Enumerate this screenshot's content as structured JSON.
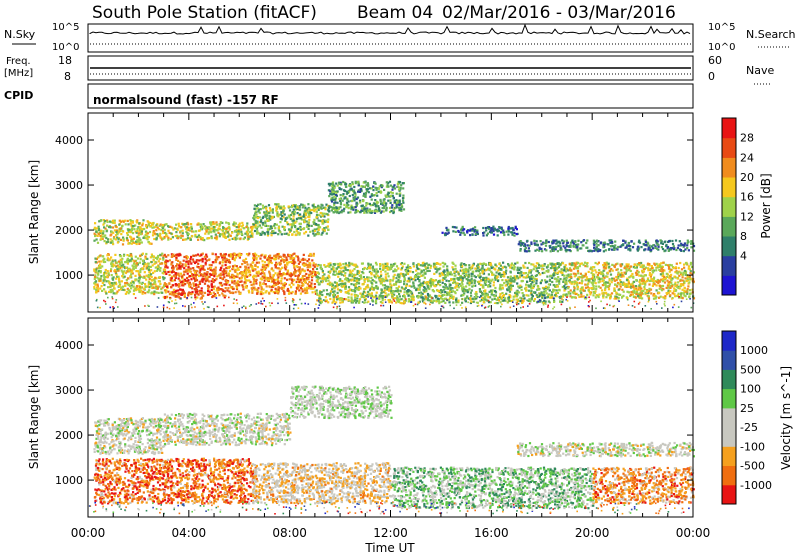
{
  "header": {
    "station": "South Pole Station (fitACF)",
    "beam": "Beam 04",
    "date_range": "02/Mar/2016 - 03/Mar/2016"
  },
  "sky_panel": {
    "left_label": "N.Sky",
    "left_ticks": [
      "10^5",
      "10^0"
    ],
    "right_label": "N.Search",
    "right_ticks": [
      "10^5",
      "10^0"
    ]
  },
  "freq_panel": {
    "left_label_1": "Freq.",
    "left_label_2": "[MHz]",
    "left_ticks": [
      "18",
      "8"
    ],
    "right_label": "Nave",
    "right_ticks": [
      "60",
      "0"
    ]
  },
  "cpid_panel": {
    "label": "CPID",
    "text": "normalsound (fast) -157 RF"
  },
  "colors": {
    "power": [
      "#1e14d2",
      "#2a3fa0",
      "#2f7f6a",
      "#5aa85a",
      "#9fd24a",
      "#f5c81e",
      "#f08c1e",
      "#e84a14",
      "#e81414"
    ],
    "velocity": [
      "#e81414",
      "#f06e10",
      "#f5a01e",
      "#c8c8c0",
      "#c8c8c0",
      "#5fc846",
      "#2f8a5a",
      "#3050a8",
      "#1e28c8"
    ]
  },
  "chart_data": [
    {
      "type": "heatmap",
      "title": "",
      "xlabel": "",
      "ylabel": "Slant Range [km]",
      "x_ticks": [
        "00:00",
        "04:00",
        "08:00",
        "12:00",
        "16:00",
        "20:00",
        "00:00"
      ],
      "y_ticks": [
        "1000",
        "2000",
        "3000",
        "4000"
      ],
      "xlim_hours": [
        0,
        24
      ],
      "ylim_km": [
        180,
        4600
      ],
      "colorbar": {
        "label": "Power [dB]",
        "ticks": [
          "28",
          "24",
          "20",
          "16",
          "12",
          "8",
          "4"
        ],
        "range": [
          0,
          30
        ]
      },
      "bands": [
        {
          "t0": 0.2,
          "t1": 2.5,
          "r0": 1700,
          "r1": 2250,
          "level": 0.55
        },
        {
          "t0": 2.5,
          "t1": 6.5,
          "r0": 1800,
          "r1": 2200,
          "level": 0.55
        },
        {
          "t0": 6.5,
          "t1": 9.5,
          "r0": 1900,
          "r1": 2600,
          "level": 0.45
        },
        {
          "t0": 9.5,
          "t1": 12.5,
          "r0": 2400,
          "r1": 3100,
          "level": 0.35
        },
        {
          "t0": 0.2,
          "t1": 3.0,
          "r0": 600,
          "r1": 1500,
          "level": 0.55
        },
        {
          "t0": 3.0,
          "t1": 5.5,
          "r0": 500,
          "r1": 1500,
          "level": 0.85
        },
        {
          "t0": 5.5,
          "t1": 9.0,
          "r0": 600,
          "r1": 1500,
          "level": 0.75
        },
        {
          "t0": 9.0,
          "t1": 12.5,
          "r0": 400,
          "r1": 1300,
          "level": 0.5
        },
        {
          "t0": 12.5,
          "t1": 19.0,
          "r0": 400,
          "r1": 1300,
          "level": 0.45
        },
        {
          "t0": 19.0,
          "t1": 24.0,
          "r0": 500,
          "r1": 1300,
          "level": 0.6
        },
        {
          "t0": 17.0,
          "t1": 24.0,
          "r0": 1550,
          "r1": 1800,
          "level": 0.25
        },
        {
          "t0": 14.0,
          "t1": 17.0,
          "r0": 1900,
          "r1": 2100,
          "level": 0.2
        }
      ]
    },
    {
      "type": "heatmap",
      "title": "",
      "xlabel": "Time UT",
      "ylabel": "Slant Range [km]",
      "x_ticks": [
        "00:00",
        "04:00",
        "08:00",
        "12:00",
        "16:00",
        "20:00",
        "00:00"
      ],
      "y_ticks": [
        "1000",
        "2000",
        "3000",
        "4000"
      ],
      "xlim_hours": [
        0,
        24
      ],
      "ylim_km": [
        180,
        4600
      ],
      "colorbar": {
        "label": "Velocity [m s^-1]",
        "ticks": [
          "1000",
          "500",
          "100",
          "25",
          "-25",
          "-100",
          "-500",
          "-1000"
        ],
        "range": [
          -1000,
          1000
        ]
      },
      "bands": [
        {
          "t0": 0.2,
          "t1": 3.0,
          "r0": 1600,
          "r1": 2400,
          "level": 0.45
        },
        {
          "t0": 3.0,
          "t1": 8.0,
          "r0": 1800,
          "r1": 2500,
          "level": 0.45
        },
        {
          "t0": 8.0,
          "t1": 12.0,
          "r0": 2400,
          "r1": 3100,
          "level": 0.5
        },
        {
          "t0": 0.2,
          "t1": 6.5,
          "r0": 500,
          "r1": 1500,
          "level": 0.15
        },
        {
          "t0": 6.5,
          "t1": 12.0,
          "r0": 500,
          "r1": 1400,
          "level": 0.35
        },
        {
          "t0": 12.0,
          "t1": 20.0,
          "r0": 400,
          "r1": 1300,
          "level": 0.6
        },
        {
          "t0": 20.0,
          "t1": 24.0,
          "r0": 500,
          "r1": 1300,
          "level": 0.2
        },
        {
          "t0": 17.0,
          "t1": 24.0,
          "r0": 1550,
          "r1": 1850,
          "level": 0.45
        }
      ]
    }
  ]
}
